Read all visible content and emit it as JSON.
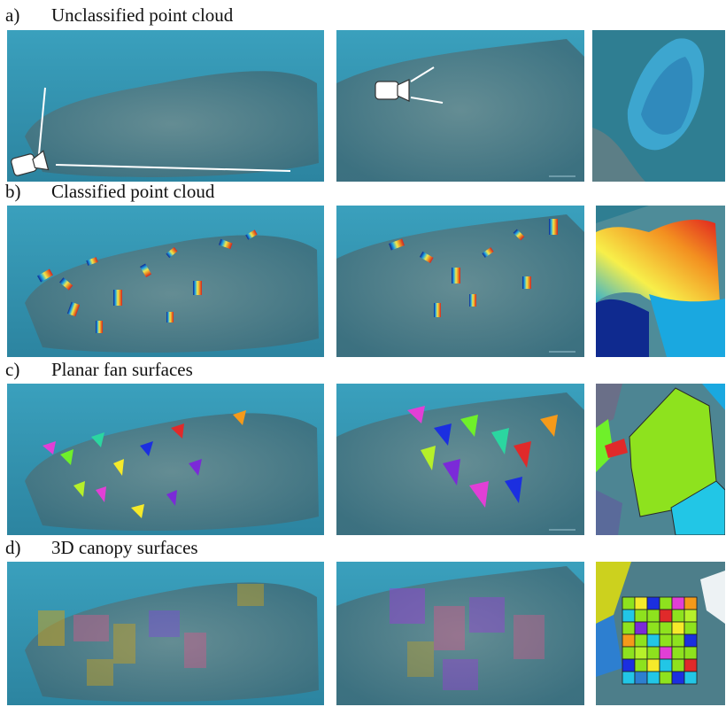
{
  "rows": [
    {
      "letter": "a)",
      "title": "Unclassified point cloud"
    },
    {
      "letter": "b)",
      "title": "Classified point cloud"
    },
    {
      "letter": "c)",
      "title": "Planar fan surfaces"
    },
    {
      "letter": "d)",
      "title": "3D canopy surfaces"
    }
  ],
  "colors": {
    "water": "#2c8aa8",
    "water_light": "#4fb0c9",
    "reef": "#4f7d88",
    "reef_dark": "#3b5f68"
  }
}
